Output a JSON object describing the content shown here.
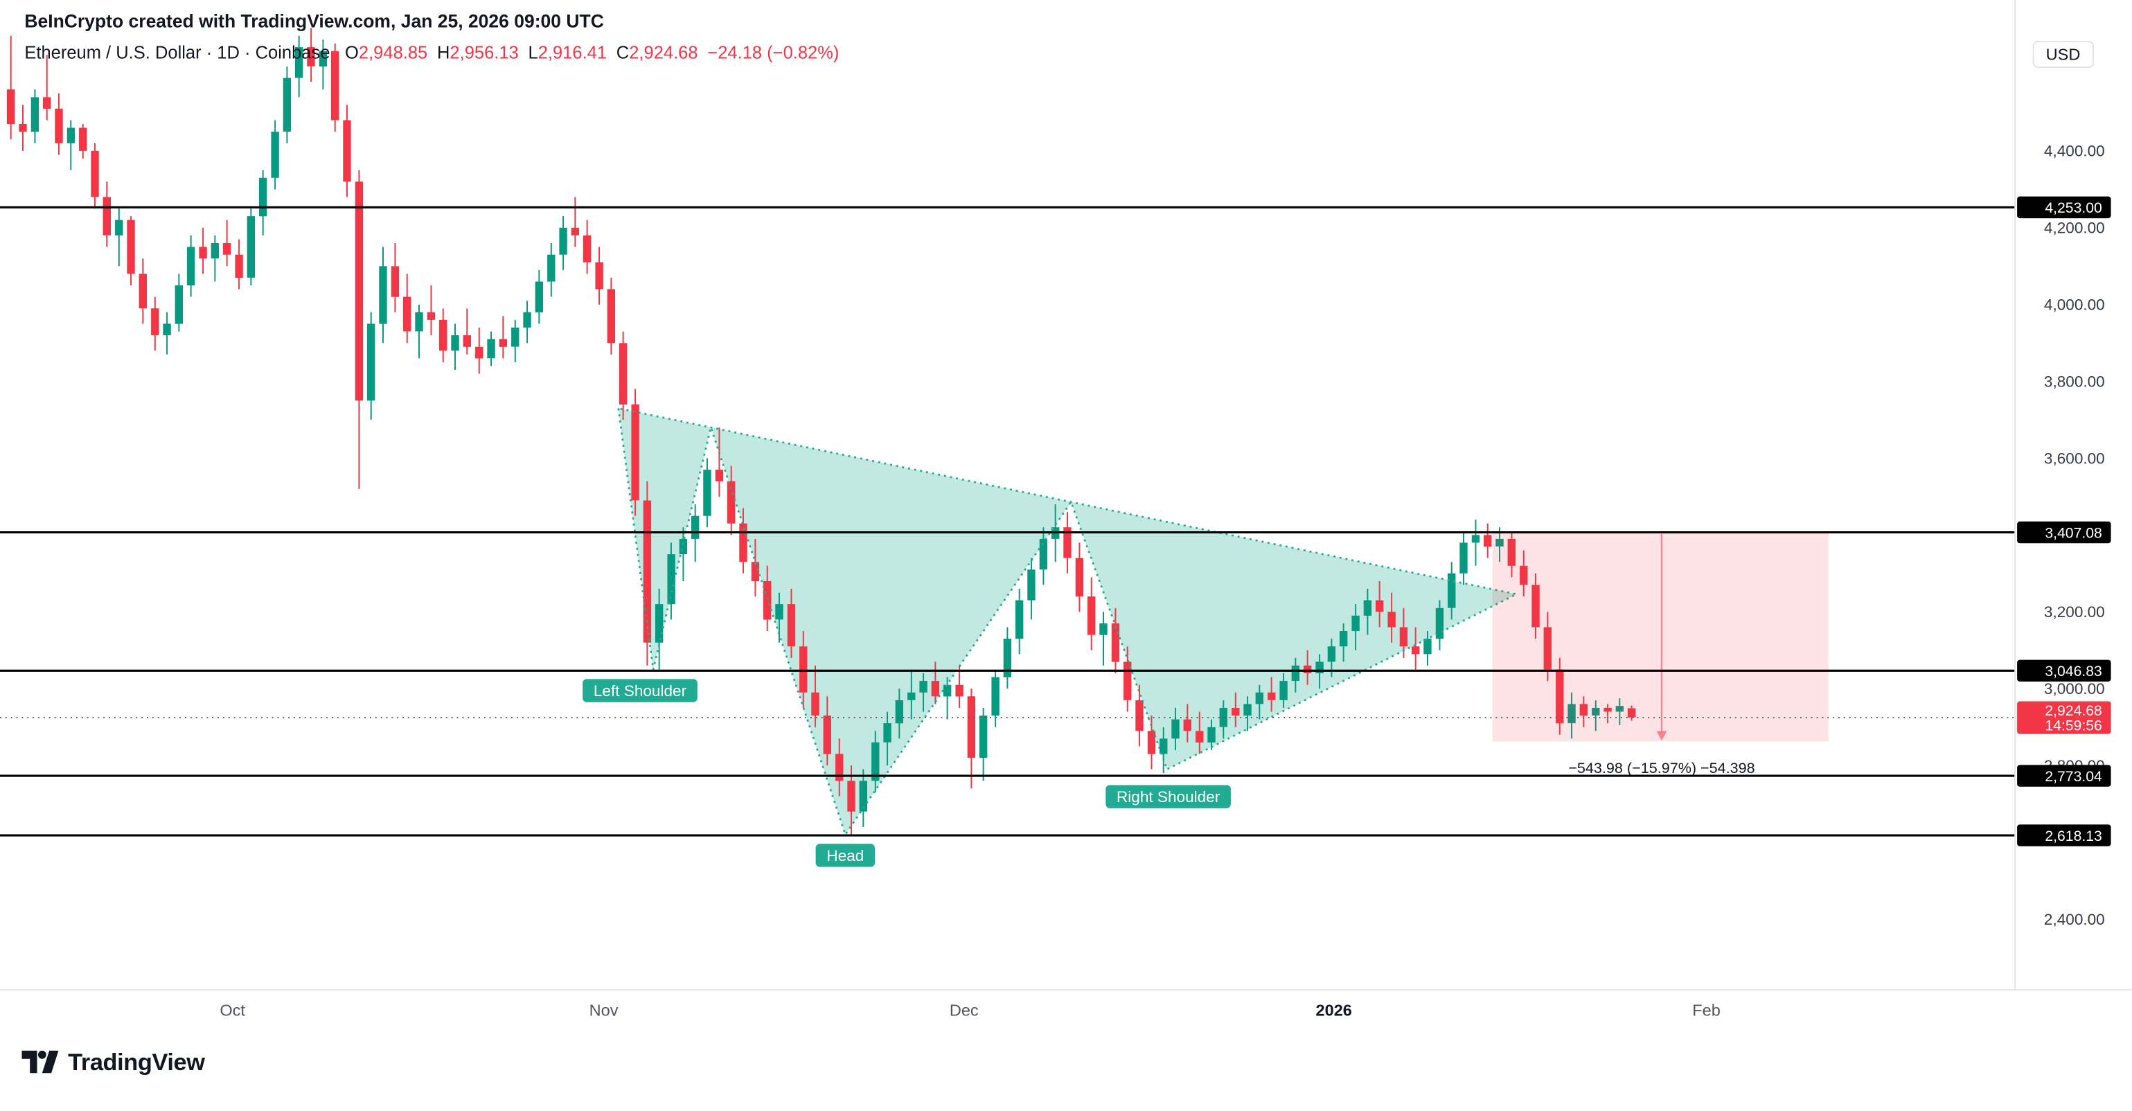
{
  "header": {
    "credit": "BeInCrypto created with TradingView.com, Jan 25, 2026 09:00 UTC"
  },
  "legend": {
    "symbol": "Ethereum / U.S. Dollar · 1D · Coinbase",
    "o_label": "O",
    "o": "2,948.85",
    "h_label": "H",
    "h": "2,956.13",
    "l_label": "L",
    "l": "2,916.41",
    "c_label": "C",
    "c": "2,924.68",
    "change": "−24.18 (−0.82%)"
  },
  "price_axis": {
    "currency_label": "USD"
  },
  "footer": {
    "brand": "TradingView"
  },
  "colors": {
    "up": "#089981",
    "down": "#F23645",
    "pattern": "#22AB94",
    "pattern_fill": "rgba(34,171,148,0.28)",
    "level_line": "#000000",
    "projection_fill": "rgba(242,54,69,0.14)",
    "projection_arrow": "#F23645",
    "last_price_bg": "#F23645",
    "text": "#131722",
    "axis_text": "#363A45",
    "time_text": "#50535E",
    "separator": "#E0E3EB",
    "last_price_line": "#56595F"
  },
  "chart_data": {
    "type": "candlestick",
    "title": "Ethereum / U.S. Dollar · 1D · Coinbase",
    "interval": "1D",
    "exchange": "Coinbase",
    "start_date": "2025-09-12",
    "y_axis": {
      "visible_range": [
        2216,
        4793
      ],
      "ticks": [
        {
          "price": 4400,
          "label": "4,400.00"
        },
        {
          "price": 4200,
          "label": "4,200.00"
        },
        {
          "price": 4000,
          "label": "4,000.00"
        },
        {
          "price": 3800,
          "label": "3,800.00"
        },
        {
          "price": 3600,
          "label": "3,600.00"
        },
        {
          "price": 3200,
          "label": "3,200.00"
        },
        {
          "price": 3000,
          "label": "3,000.00"
        },
        {
          "price": 2800,
          "label": "2,800.00"
        },
        {
          "price": 2400,
          "label": "2,400.00"
        }
      ]
    },
    "x_axis": {
      "labels": [
        {
          "text": "Oct",
          "i": 18.46,
          "bold": false
        },
        {
          "text": "Nov",
          "i": 49.38,
          "bold": false
        },
        {
          "text": "Dec",
          "i": 79.39,
          "bold": false
        },
        {
          "text": "2026",
          "i": 110.19,
          "bold": true
        },
        {
          "text": "Feb",
          "i": 141.22,
          "bold": false
        }
      ]
    },
    "levels": [
      {
        "price": 4253.0,
        "label": "4,253.00"
      },
      {
        "price": 3407.08,
        "label": "3,407.08"
      },
      {
        "price": 3046.83,
        "label": "3,046.83"
      },
      {
        "price": 2773.04,
        "label": "2,773.04"
      },
      {
        "price": 2618.13,
        "label": "2,618.13"
      }
    ],
    "last_price": {
      "price": 2924.68,
      "label": "2,924.68",
      "countdown": "14:59:56"
    },
    "pattern": {
      "name": "Head and Shoulders",
      "vertices": [
        {
          "i": 50.6,
          "p": 3730
        },
        {
          "i": 53.5,
          "p": 3050
        },
        {
          "i": 58.3,
          "p": 3680
        },
        {
          "i": 69.5,
          "p": 2620
        },
        {
          "i": 88.3,
          "p": 3486
        },
        {
          "i": 96.3,
          "p": 2790
        },
        {
          "i": 125.4,
          "p": 3246
        }
      ],
      "labels": [
        {
          "text": "Left Shoulder",
          "i": 52.4,
          "p": 2995
        },
        {
          "text": "Head",
          "i": 69.5,
          "p": 2566
        },
        {
          "text": "Right Shoulder",
          "i": 96.4,
          "p": 2719
        }
      ]
    },
    "projection": {
      "i_start": 123.4,
      "i_end": 151.4,
      "price_top": 3407.08,
      "price_bottom": 2863.1,
      "arrow_i": 137.5,
      "text": "−543.98 (−15.97%) −54.398",
      "text_i": 137.5,
      "text_p": 2781
    },
    "ohlc": [
      [
        4560,
        4700,
        4430,
        4470
      ],
      [
        4470,
        4520,
        4400,
        4450
      ],
      [
        4450,
        4560,
        4420,
        4540
      ],
      [
        4540,
        4650,
        4480,
        4510
      ],
      [
        4510,
        4550,
        4390,
        4420
      ],
      [
        4420,
        4480,
        4350,
        4460
      ],
      [
        4460,
        4470,
        4380,
        4400
      ],
      [
        4400,
        4420,
        4250,
        4280
      ],
      [
        4280,
        4320,
        4150,
        4180
      ],
      [
        4180,
        4250,
        4100,
        4220
      ],
      [
        4220,
        4230,
        4050,
        4080
      ],
      [
        4080,
        4120,
        3950,
        3990
      ],
      [
        3990,
        4020,
        3880,
        3920
      ],
      [
        3920,
        3980,
        3870,
        3950
      ],
      [
        3950,
        4080,
        3930,
        4050
      ],
      [
        4050,
        4180,
        4020,
        4150
      ],
      [
        4150,
        4200,
        4080,
        4120
      ],
      [
        4120,
        4180,
        4060,
        4160
      ],
      [
        4160,
        4220,
        4100,
        4130
      ],
      [
        4130,
        4170,
        4040,
        4070
      ],
      [
        4070,
        4250,
        4050,
        4230
      ],
      [
        4230,
        4350,
        4180,
        4330
      ],
      [
        4330,
        4480,
        4300,
        4450
      ],
      [
        4450,
        4620,
        4420,
        4590
      ],
      [
        4590,
        4700,
        4540,
        4670
      ],
      [
        4670,
        4720,
        4580,
        4620
      ],
      [
        4620,
        4690,
        4560,
        4660
      ],
      [
        4660,
        4680,
        4450,
        4480
      ],
      [
        4480,
        4520,
        4280,
        4320
      ],
      [
        4320,
        4350,
        3520,
        3750
      ],
      [
        3750,
        3980,
        3700,
        3950
      ],
      [
        3950,
        4150,
        3900,
        4100
      ],
      [
        4100,
        4160,
        3980,
        4020
      ],
      [
        4020,
        4080,
        3900,
        3930
      ],
      [
        3930,
        4000,
        3860,
        3980
      ],
      [
        3980,
        4050,
        3920,
        3960
      ],
      [
        3960,
        3990,
        3850,
        3880
      ],
      [
        3880,
        3950,
        3830,
        3920
      ],
      [
        3920,
        3990,
        3870,
        3890
      ],
      [
        3890,
        3940,
        3820,
        3860
      ],
      [
        3860,
        3930,
        3840,
        3910
      ],
      [
        3910,
        3970,
        3860,
        3890
      ],
      [
        3890,
        3960,
        3850,
        3940
      ],
      [
        3940,
        4010,
        3900,
        3980
      ],
      [
        3980,
        4090,
        3950,
        4060
      ],
      [
        4060,
        4160,
        4020,
        4130
      ],
      [
        4130,
        4230,
        4090,
        4200
      ],
      [
        4200,
        4280,
        4150,
        4180
      ],
      [
        4180,
        4220,
        4080,
        4110
      ],
      [
        4110,
        4150,
        4000,
        4040
      ],
      [
        4040,
        4070,
        3870,
        3900
      ],
      [
        3900,
        3930,
        3700,
        3740
      ],
      [
        3740,
        3780,
        3450,
        3490
      ],
      [
        3490,
        3540,
        3060,
        3120
      ],
      [
        3120,
        3260,
        3050,
        3220
      ],
      [
        3220,
        3380,
        3180,
        3350
      ],
      [
        3350,
        3420,
        3280,
        3390
      ],
      [
        3390,
        3480,
        3330,
        3450
      ],
      [
        3450,
        3600,
        3420,
        3570
      ],
      [
        3570,
        3680,
        3500,
        3540
      ],
      [
        3540,
        3580,
        3400,
        3430
      ],
      [
        3430,
        3470,
        3300,
        3330
      ],
      [
        3330,
        3390,
        3240,
        3280
      ],
      [
        3280,
        3320,
        3150,
        3180
      ],
      [
        3180,
        3250,
        3120,
        3220
      ],
      [
        3220,
        3260,
        3080,
        3110
      ],
      [
        3110,
        3150,
        2950,
        2990
      ],
      [
        2990,
        3060,
        2900,
        2930
      ],
      [
        2930,
        2980,
        2800,
        2830
      ],
      [
        2830,
        2870,
        2720,
        2760
      ],
      [
        2760,
        2800,
        2620,
        2680
      ],
      [
        2680,
        2790,
        2640,
        2760
      ],
      [
        2760,
        2890,
        2730,
        2860
      ],
      [
        2860,
        2940,
        2800,
        2910
      ],
      [
        2910,
        3000,
        2870,
        2970
      ],
      [
        2970,
        3050,
        2920,
        2990
      ],
      [
        2990,
        3040,
        2940,
        3020
      ],
      [
        3020,
        3070,
        2960,
        2980
      ],
      [
        2980,
        3030,
        2920,
        3010
      ],
      [
        3010,
        3060,
        2950,
        2980
      ],
      [
        2980,
        3000,
        2740,
        2820
      ],
      [
        2820,
        2950,
        2760,
        2930
      ],
      [
        2930,
        3050,
        2900,
        3030
      ],
      [
        3030,
        3160,
        3000,
        3130
      ],
      [
        3130,
        3260,
        3090,
        3230
      ],
      [
        3230,
        3340,
        3180,
        3310
      ],
      [
        3310,
        3420,
        3270,
        3390
      ],
      [
        3390,
        3480,
        3330,
        3420
      ],
      [
        3420,
        3460,
        3300,
        3340
      ],
      [
        3340,
        3380,
        3200,
        3240
      ],
      [
        3240,
        3290,
        3100,
        3140
      ],
      [
        3140,
        3200,
        3060,
        3170
      ],
      [
        3170,
        3210,
        3040,
        3070
      ],
      [
        3070,
        3110,
        2940,
        2970
      ],
      [
        2970,
        3010,
        2850,
        2890
      ],
      [
        2890,
        2930,
        2790,
        2830
      ],
      [
        2830,
        2900,
        2780,
        2870
      ],
      [
        2870,
        2950,
        2840,
        2920
      ],
      [
        2920,
        2960,
        2860,
        2890
      ],
      [
        2890,
        2940,
        2830,
        2860
      ],
      [
        2860,
        2920,
        2840,
        2900
      ],
      [
        2900,
        2970,
        2870,
        2950
      ],
      [
        2950,
        2990,
        2900,
        2930
      ],
      [
        2930,
        2980,
        2890,
        2960
      ],
      [
        2960,
        3010,
        2920,
        2990
      ],
      [
        2990,
        3030,
        2940,
        2970
      ],
      [
        2970,
        3040,
        2950,
        3020
      ],
      [
        3020,
        3080,
        2990,
        3060
      ],
      [
        3060,
        3100,
        3010,
        3040
      ],
      [
        3040,
        3090,
        3000,
        3070
      ],
      [
        3070,
        3130,
        3030,
        3110
      ],
      [
        3110,
        3170,
        3070,
        3150
      ],
      [
        3150,
        3220,
        3100,
        3190
      ],
      [
        3190,
        3260,
        3140,
        3230
      ],
      [
        3230,
        3280,
        3160,
        3200
      ],
      [
        3200,
        3250,
        3120,
        3160
      ],
      [
        3160,
        3210,
        3080,
        3110
      ],
      [
        3110,
        3160,
        3050,
        3090
      ],
      [
        3090,
        3150,
        3060,
        3130
      ],
      [
        3130,
        3230,
        3100,
        3210
      ],
      [
        3210,
        3330,
        3180,
        3300
      ],
      [
        3300,
        3410,
        3270,
        3380
      ],
      [
        3380,
        3440,
        3320,
        3400
      ],
      [
        3400,
        3430,
        3340,
        3370
      ],
      [
        3370,
        3420,
        3330,
        3390
      ],
      [
        3390,
        3410,
        3290,
        3320
      ],
      [
        3320,
        3360,
        3240,
        3270
      ],
      [
        3270,
        3300,
        3130,
        3160
      ],
      [
        3160,
        3200,
        3020,
        3050
      ],
      [
        3050,
        3080,
        2880,
        2910
      ],
      [
        2910,
        2990,
        2870,
        2960
      ],
      [
        2960,
        2980,
        2900,
        2930
      ],
      [
        2930,
        2970,
        2890,
        2950
      ],
      [
        2950,
        2960,
        2910,
        2940
      ],
      [
        2940,
        2975,
        2905,
        2955
      ],
      [
        2948.85,
        2956.13,
        2916.41,
        2924.68
      ]
    ]
  }
}
